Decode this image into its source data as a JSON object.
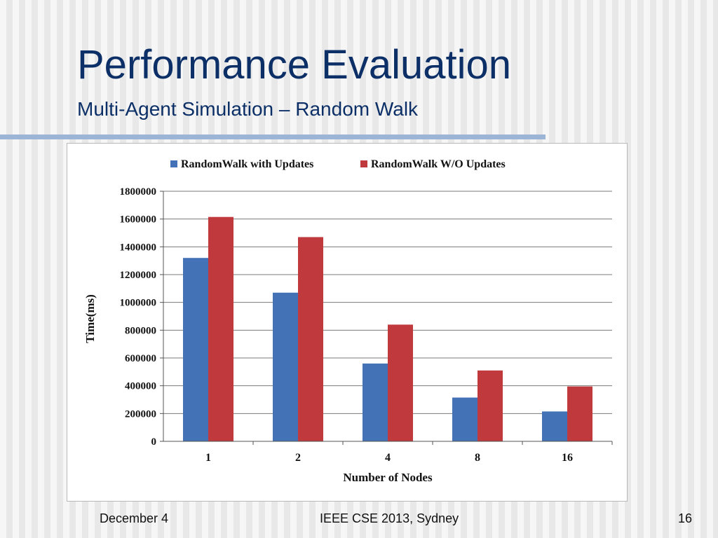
{
  "slide": {
    "title": "Performance Evaluation",
    "subtitle": "Multi-Agent Simulation – Random Walk",
    "footer_left": "December 4",
    "footer_center": "IEEE CSE 2013, Sydney",
    "footer_right": "16"
  },
  "chart_data": {
    "type": "bar",
    "title": "",
    "xlabel": "Number  of Nodes",
    "ylabel": "Time(ms)",
    "categories": [
      "1",
      "2",
      "4",
      "8",
      "16"
    ],
    "ylim": [
      0,
      1800000
    ],
    "yticks": [
      "0",
      "200000",
      "400000",
      "600000",
      "800000",
      "1000000",
      "1200000",
      "1400000",
      "1600000",
      "1800000"
    ],
    "grid": true,
    "legend_position": "top",
    "series": [
      {
        "name": "RandomWalk with Updates",
        "color": "#4372b7",
        "values": [
          1320000,
          1070000,
          560000,
          315000,
          215000
        ]
      },
      {
        "name": "RandomWalk W/O Updates",
        "color": "#c0393c",
        "values": [
          1615000,
          1470000,
          840000,
          510000,
          395000
        ]
      }
    ]
  }
}
